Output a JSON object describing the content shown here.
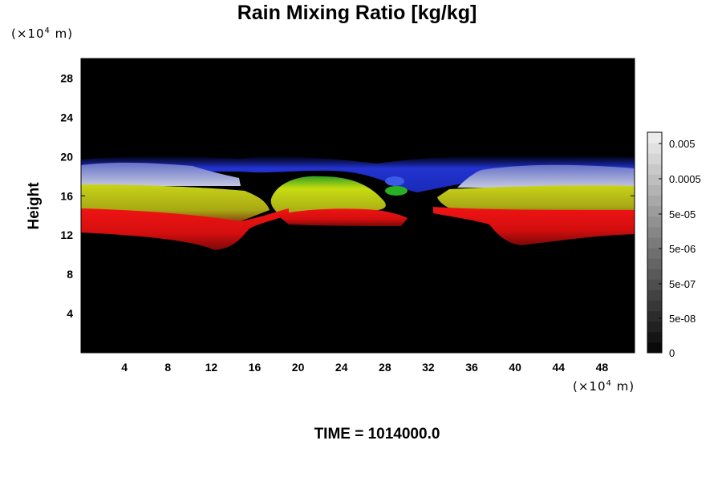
{
  "chart_data": {
    "type": "heatmap",
    "title": "Rain Mixing Ratio [kg/kg]",
    "ylabel": "Height",
    "xlabel": "",
    "x_unit": {
      "prefix": "(×10",
      "exp": "4",
      "suffix": " m)"
    },
    "y_unit": {
      "prefix": "(×10",
      "exp": "4",
      "suffix": " m)"
    },
    "xlim": [
      0,
      51
    ],
    "ylim": [
      0,
      30
    ],
    "x_ticks": [
      4,
      8,
      12,
      16,
      20,
      24,
      28,
      32,
      36,
      40,
      44,
      48
    ],
    "y_ticks": [
      4,
      8,
      12,
      16,
      20,
      24,
      28
    ],
    "colorbar": {
      "labels": [
        "0.005",
        "0.0005",
        "5e-05",
        "5e-06",
        "5e-07",
        "5e-08",
        "0"
      ],
      "levels": 21
    },
    "bands": [
      {
        "name": "blue",
        "color": "#2a3ad8"
      },
      {
        "name": "lavender",
        "color": "#aab0e0"
      },
      {
        "name": "yellow",
        "color": "#c8d010"
      },
      {
        "name": "red",
        "color": "#e01010"
      },
      {
        "name": "green",
        "color": "#30c030"
      }
    ]
  },
  "footer": {
    "time": "TIME = 1014000.0"
  }
}
